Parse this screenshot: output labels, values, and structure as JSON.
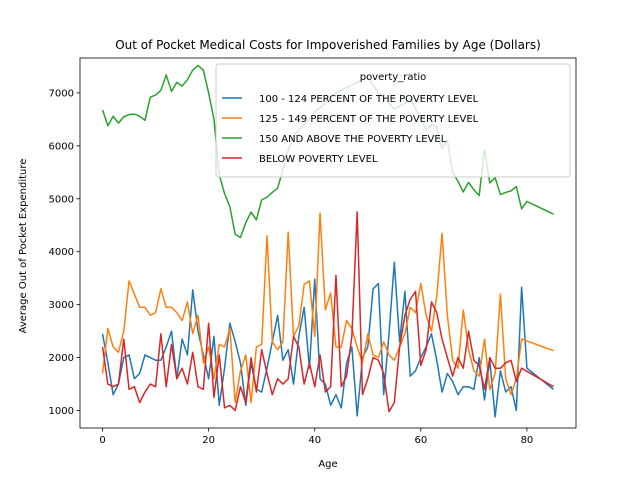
{
  "chart_data": {
    "type": "line",
    "title": "Out of Pocket Medical Costs for Impoverished Families by Age (Dollars)",
    "xlabel": "Age",
    "ylabel": "Average Out of Pocket Expenditure",
    "xlim": [
      -4.25,
      89.25
    ],
    "ylim": [
      670,
      7660
    ],
    "xticks": [
      0,
      20,
      40,
      60,
      80
    ],
    "yticks": [
      1000,
      2000,
      3000,
      4000,
      5000,
      6000,
      7000
    ],
    "grid": false,
    "legend": {
      "title": "poverty_ratio",
      "placement": "top-right"
    },
    "series": [
      {
        "name": "100 - 124 PERCENT OF THE POVERTY LEVEL",
        "color": "#1f77b4",
        "points": [
          [
            0,
            2450
          ],
          [
            1,
            1900
          ],
          [
            2,
            1300
          ],
          [
            3,
            1500
          ],
          [
            4,
            2000
          ],
          [
            5,
            2050
          ],
          [
            6,
            1600
          ],
          [
            7,
            1700
          ],
          [
            8,
            2050
          ],
          [
            9,
            2000
          ],
          [
            10,
            1950
          ],
          [
            11,
            1950
          ],
          [
            12,
            2200
          ],
          [
            13,
            2500
          ],
          [
            14,
            1600
          ],
          [
            15,
            2350
          ],
          [
            16,
            2050
          ],
          [
            17,
            3280
          ],
          [
            18,
            2500
          ],
          [
            19,
            2050
          ],
          [
            20,
            1600
          ],
          [
            21,
            2400
          ],
          [
            22,
            1100
          ],
          [
            23,
            1800
          ],
          [
            24,
            2650
          ],
          [
            25,
            2300
          ],
          [
            26,
            1900
          ],
          [
            27,
            1100
          ],
          [
            28,
            1900
          ],
          [
            29,
            1400
          ],
          [
            30,
            1350
          ],
          [
            31,
            1800
          ],
          [
            32,
            2300
          ],
          [
            33,
            2800
          ],
          [
            34,
            1950
          ],
          [
            35,
            2150
          ],
          [
            36,
            1500
          ],
          [
            37,
            2400
          ],
          [
            38,
            2950
          ],
          [
            39,
            1800
          ],
          [
            40,
            3480
          ],
          [
            41,
            1600
          ],
          [
            42,
            1500
          ],
          [
            43,
            1100
          ],
          [
            44,
            1300
          ],
          [
            45,
            1050
          ],
          [
            46,
            1900
          ],
          [
            47,
            2200
          ],
          [
            48,
            900
          ],
          [
            49,
            2000
          ],
          [
            50,
            2200
          ],
          [
            51,
            3300
          ],
          [
            52,
            3400
          ],
          [
            53,
            1300
          ],
          [
            54,
            2450
          ],
          [
            55,
            3800
          ],
          [
            56,
            2300
          ],
          [
            57,
            3250
          ],
          [
            58,
            1650
          ],
          [
            59,
            1750
          ],
          [
            60,
            2000
          ],
          [
            61,
            2200
          ],
          [
            62,
            2450
          ],
          [
            63,
            1950
          ],
          [
            64,
            1350
          ],
          [
            65,
            1700
          ],
          [
            66,
            1550
          ],
          [
            67,
            1300
          ],
          [
            68,
            1450
          ],
          [
            69,
            1450
          ],
          [
            70,
            1400
          ],
          [
            71,
            2000
          ],
          [
            72,
            1200
          ],
          [
            73,
            1950
          ],
          [
            74,
            880
          ],
          [
            75,
            1750
          ],
          [
            76,
            1350
          ],
          [
            77,
            1450
          ],
          [
            78,
            1000
          ],
          [
            79,
            3330
          ],
          [
            80,
            1800
          ],
          [
            85,
            1400
          ]
        ]
      },
      {
        "name": "125 - 149 PERCENT OF THE POVERTY LEVEL",
        "color": "#ff7f0e",
        "points": [
          [
            0,
            1700
          ],
          [
            1,
            2550
          ],
          [
            2,
            2200
          ],
          [
            3,
            2100
          ],
          [
            4,
            2500
          ],
          [
            5,
            3450
          ],
          [
            6,
            3200
          ],
          [
            7,
            2950
          ],
          [
            8,
            2950
          ],
          [
            9,
            2800
          ],
          [
            10,
            2850
          ],
          [
            11,
            3300
          ],
          [
            12,
            2950
          ],
          [
            13,
            2950
          ],
          [
            14,
            2850
          ],
          [
            15,
            2700
          ],
          [
            16,
            3050
          ],
          [
            17,
            2450
          ],
          [
            18,
            2800
          ],
          [
            19,
            1900
          ],
          [
            20,
            2200
          ],
          [
            21,
            1600
          ],
          [
            22,
            2250
          ],
          [
            23,
            2200
          ],
          [
            24,
            2550
          ],
          [
            25,
            1150
          ],
          [
            26,
            1750
          ],
          [
            27,
            2050
          ],
          [
            28,
            1150
          ],
          [
            29,
            2200
          ],
          [
            30,
            2250
          ],
          [
            31,
            4300
          ],
          [
            32,
            2300
          ],
          [
            33,
            2150
          ],
          [
            34,
            2300
          ],
          [
            35,
            4370
          ],
          [
            36,
            2400
          ],
          [
            37,
            2600
          ],
          [
            38,
            3380
          ],
          [
            39,
            3450
          ],
          [
            40,
            2400
          ],
          [
            41,
            4730
          ],
          [
            42,
            2900
          ],
          [
            43,
            3220
          ],
          [
            44,
            2200
          ],
          [
            45,
            2200
          ],
          [
            46,
            2700
          ],
          [
            47,
            2550
          ],
          [
            48,
            2200
          ],
          [
            49,
            1900
          ],
          [
            50,
            2450
          ],
          [
            51,
            2050
          ],
          [
            52,
            2000
          ],
          [
            53,
            2300
          ],
          [
            54,
            2050
          ],
          [
            55,
            1950
          ],
          [
            56,
            2200
          ],
          [
            57,
            2450
          ],
          [
            58,
            2950
          ],
          [
            59,
            2850
          ],
          [
            60,
            3400
          ],
          [
            61,
            2800
          ],
          [
            62,
            2500
          ],
          [
            63,
            3150
          ],
          [
            64,
            4350
          ],
          [
            65,
            2800
          ],
          [
            66,
            1950
          ],
          [
            67,
            1800
          ],
          [
            68,
            2900
          ],
          [
            69,
            2150
          ],
          [
            70,
            1750
          ],
          [
            71,
            1650
          ],
          [
            72,
            2350
          ],
          [
            73,
            1400
          ],
          [
            74,
            1700
          ],
          [
            75,
            3200
          ],
          [
            76,
            1600
          ],
          [
            77,
            1300
          ],
          [
            78,
            1600
          ],
          [
            79,
            2350
          ],
          [
            85,
            2130
          ]
        ]
      },
      {
        "name": "150 AND ABOVE THE POVERTY LEVEL",
        "color": "#2ca02c",
        "points": [
          [
            0,
            6680
          ],
          [
            1,
            6380
          ],
          [
            2,
            6560
          ],
          [
            3,
            6430
          ],
          [
            4,
            6550
          ],
          [
            5,
            6590
          ],
          [
            6,
            6600
          ],
          [
            7,
            6560
          ],
          [
            8,
            6480
          ],
          [
            9,
            6920
          ],
          [
            10,
            6960
          ],
          [
            11,
            7050
          ],
          [
            12,
            7340
          ],
          [
            13,
            7030
          ],
          [
            14,
            7200
          ],
          [
            15,
            7130
          ],
          [
            16,
            7250
          ],
          [
            17,
            7430
          ],
          [
            18,
            7520
          ],
          [
            19,
            7430
          ],
          [
            20,
            7000
          ],
          [
            21,
            6500
          ],
          [
            22,
            5450
          ],
          [
            23,
            5100
          ],
          [
            24,
            4850
          ],
          [
            25,
            4330
          ],
          [
            26,
            4270
          ],
          [
            27,
            4550
          ],
          [
            28,
            4750
          ],
          [
            29,
            4600
          ],
          [
            30,
            4980
          ],
          [
            31,
            5030
          ],
          [
            32,
            5120
          ],
          [
            33,
            5200
          ],
          [
            34,
            5550
          ],
          [
            35,
            5920
          ],
          [
            36,
            6200
          ],
          [
            37,
            6300
          ],
          [
            38,
            6400
          ],
          [
            39,
            6500
          ],
          [
            40,
            6650
          ],
          [
            41,
            6720
          ],
          [
            42,
            6800
          ],
          [
            43,
            6900
          ],
          [
            44,
            7000
          ],
          [
            45,
            7050
          ],
          [
            46,
            7100
          ],
          [
            47,
            7150
          ],
          [
            48,
            7200
          ],
          [
            49,
            7250
          ],
          [
            50,
            7290
          ],
          [
            51,
            7150
          ],
          [
            52,
            7000
          ],
          [
            53,
            6900
          ],
          [
            54,
            6800
          ],
          [
            55,
            6700
          ],
          [
            56,
            6750
          ],
          [
            57,
            6800
          ],
          [
            58,
            6900
          ],
          [
            59,
            6700
          ],
          [
            60,
            6500
          ],
          [
            61,
            6300
          ],
          [
            62,
            6400
          ],
          [
            63,
            6350
          ],
          [
            64,
            5950
          ],
          [
            65,
            6100
          ],
          [
            66,
            5500
          ],
          [
            67,
            5330
          ],
          [
            68,
            5130
          ],
          [
            69,
            5310
          ],
          [
            70,
            5170
          ],
          [
            71,
            5060
          ],
          [
            72,
            5930
          ],
          [
            73,
            5300
          ],
          [
            74,
            5400
          ],
          [
            75,
            5080
          ],
          [
            76,
            5120
          ],
          [
            77,
            5150
          ],
          [
            78,
            5230
          ],
          [
            79,
            4810
          ],
          [
            80,
            4950
          ],
          [
            85,
            4710
          ]
        ]
      },
      {
        "name": "BELOW POVERTY LEVEL",
        "color": "#d62728",
        "points": [
          [
            0,
            2200
          ],
          [
            1,
            1500
          ],
          [
            2,
            1450
          ],
          [
            3,
            1500
          ],
          [
            4,
            2350
          ],
          [
            5,
            1400
          ],
          [
            6,
            1450
          ],
          [
            7,
            1150
          ],
          [
            8,
            1350
          ],
          [
            9,
            1500
          ],
          [
            10,
            1450
          ],
          [
            11,
            2450
          ],
          [
            12,
            1450
          ],
          [
            13,
            2250
          ],
          [
            14,
            1600
          ],
          [
            15,
            1800
          ],
          [
            16,
            1500
          ],
          [
            17,
            2100
          ],
          [
            18,
            1450
          ],
          [
            19,
            1400
          ],
          [
            20,
            2650
          ],
          [
            21,
            1250
          ],
          [
            22,
            2050
          ],
          [
            23,
            1050
          ],
          [
            24,
            1100
          ],
          [
            25,
            1000
          ],
          [
            26,
            1450
          ],
          [
            27,
            1150
          ],
          [
            28,
            2000
          ],
          [
            29,
            1350
          ],
          [
            30,
            2150
          ],
          [
            31,
            1700
          ],
          [
            32,
            1300
          ],
          [
            33,
            1600
          ],
          [
            34,
            1500
          ],
          [
            35,
            1600
          ],
          [
            36,
            2400
          ],
          [
            37,
            2200
          ],
          [
            38,
            1500
          ],
          [
            39,
            1900
          ],
          [
            40,
            1450
          ],
          [
            41,
            2050
          ],
          [
            42,
            1350
          ],
          [
            43,
            1450
          ],
          [
            44,
            3550
          ],
          [
            45,
            1450
          ],
          [
            46,
            1650
          ],
          [
            47,
            2400
          ],
          [
            48,
            4750
          ],
          [
            49,
            1300
          ],
          [
            50,
            1600
          ],
          [
            51,
            2000
          ],
          [
            52,
            1950
          ],
          [
            53,
            1700
          ],
          [
            54,
            980
          ],
          [
            55,
            1150
          ],
          [
            56,
            2200
          ],
          [
            57,
            2800
          ],
          [
            58,
            3100
          ],
          [
            59,
            3250
          ],
          [
            60,
            1850
          ],
          [
            61,
            2150
          ],
          [
            62,
            3050
          ],
          [
            63,
            2850
          ],
          [
            64,
            2350
          ],
          [
            65,
            2000
          ],
          [
            66,
            1650
          ],
          [
            67,
            2000
          ],
          [
            68,
            1800
          ],
          [
            69,
            2500
          ],
          [
            70,
            1950
          ],
          [
            71,
            1850
          ],
          [
            72,
            1400
          ],
          [
            73,
            2000
          ],
          [
            74,
            1800
          ],
          [
            75,
            1800
          ],
          [
            76,
            1900
          ],
          [
            77,
            1950
          ],
          [
            78,
            1550
          ],
          [
            79,
            1800
          ],
          [
            85,
            1450
          ]
        ]
      }
    ]
  }
}
